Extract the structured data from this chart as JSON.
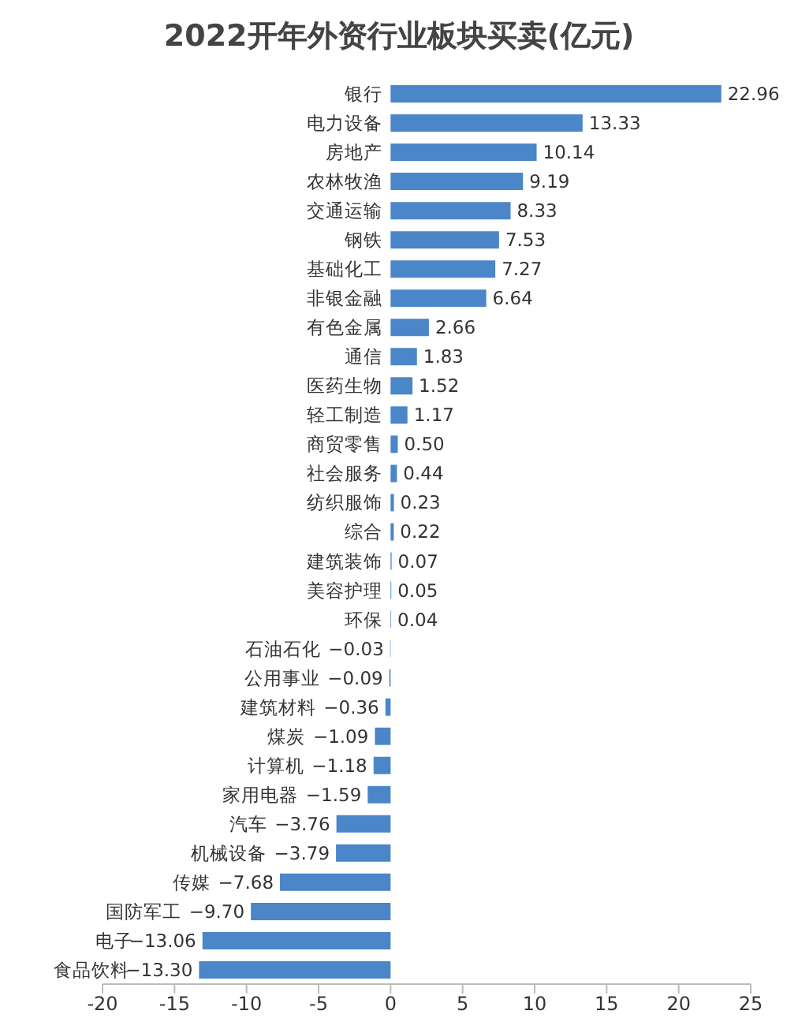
{
  "chart_data": {
    "type": "bar",
    "orientation": "horizontal",
    "title": "2022开年外资行业板块买卖(亿元)",
    "categories": [
      "银行",
      "电力设备",
      "房地产",
      "农林牧渔",
      "交通运输",
      "钢铁",
      "基础化工",
      "非银金融",
      "有色金属",
      "通信",
      "医药生物",
      "轻工制造",
      "商贸零售",
      "社会服务",
      "纺织服饰",
      "综合",
      "建筑装饰",
      "美容护理",
      "环保",
      "石油石化",
      "公用事业",
      "建筑材料",
      "煤炭",
      "计算机",
      "家用电器",
      "汽车",
      "机械设备",
      "传媒",
      "国防军工",
      "电子",
      "食品饮料"
    ],
    "values": [
      22.96,
      13.33,
      10.14,
      9.19,
      8.33,
      7.53,
      7.27,
      6.64,
      2.66,
      1.83,
      1.52,
      1.17,
      0.5,
      0.44,
      0.23,
      0.22,
      0.07,
      0.05,
      0.04,
      -0.03,
      -0.09,
      -0.36,
      -1.09,
      -1.18,
      -1.59,
      -3.76,
      -3.79,
      -7.68,
      -9.7,
      -13.06,
      -13.3
    ],
    "value_labels": [
      "22.96",
      "13.33",
      "10.14",
      "9.19",
      "8.33",
      "7.53",
      "7.27",
      "6.64",
      "2.66",
      "1.83",
      "1.52",
      "1.17",
      "0.50",
      "0.44",
      "0.23",
      "0.22",
      "0.07",
      "0.05",
      "0.04",
      "−0.03",
      "−0.09",
      "−0.36",
      "−1.09",
      "−1.18",
      "−1.59",
      "−3.76",
      "−3.79",
      "−7.68",
      "−9.70",
      "−13.06",
      "−13.30"
    ],
    "color": "#4a86c8",
    "xlim": [
      -20,
      25
    ],
    "xticks": [
      -20,
      -15,
      -10,
      -5,
      0,
      5,
      10,
      15,
      20,
      25
    ]
  }
}
